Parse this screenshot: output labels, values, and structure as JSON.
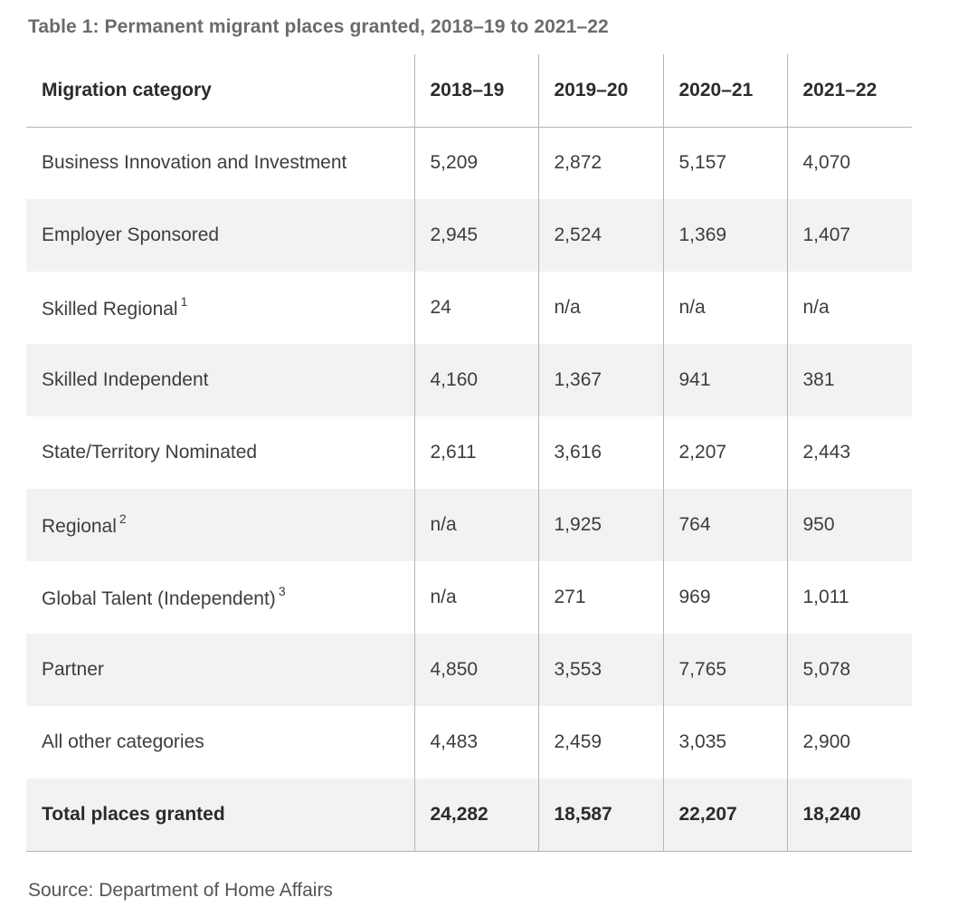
{
  "title": "Table 1: Permanent migrant places granted, 2018–19 to 2021–22",
  "table": {
    "headers": [
      "Migration category",
      "2018–19",
      "2019–20",
      "2020–21",
      "2021–22"
    ],
    "rows": [
      {
        "category": "Business Innovation and Investment",
        "footnote": "",
        "values": [
          "5,209",
          "2,872",
          "5,157",
          "4,070"
        ]
      },
      {
        "category": "Employer Sponsored",
        "footnote": "",
        "values": [
          "2,945",
          "2,524",
          "1,369",
          "1,407"
        ]
      },
      {
        "category": "Skilled Regional",
        "footnote": "1",
        "values": [
          "24",
          "n/a",
          "n/a",
          "n/a"
        ]
      },
      {
        "category": "Skilled Independent",
        "footnote": "",
        "values": [
          "4,160",
          "1,367",
          "941",
          "381"
        ]
      },
      {
        "category": "State/Territory Nominated",
        "footnote": "",
        "values": [
          "2,611",
          "3,616",
          "2,207",
          "2,443"
        ]
      },
      {
        "category": "Regional",
        "footnote": "2",
        "values": [
          "n/a",
          "1,925",
          "764",
          "950"
        ]
      },
      {
        "category": "Global Talent (Independent)",
        "footnote": "3",
        "values": [
          "n/a",
          "271",
          "969",
          "1,011"
        ]
      },
      {
        "category": "Partner",
        "footnote": "",
        "values": [
          "4,850",
          "3,553",
          "7,765",
          "5,078"
        ]
      },
      {
        "category": "All other categories",
        "footnote": "",
        "values": [
          "4,483",
          "2,459",
          "3,035",
          "2,900"
        ]
      }
    ],
    "total": {
      "category": "Total places granted",
      "values": [
        "24,282",
        "18,587",
        "22,207",
        "18,240"
      ]
    }
  },
  "source": "Source: Department of Home Affairs"
}
